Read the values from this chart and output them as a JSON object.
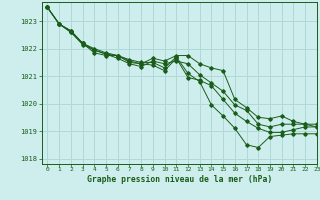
{
  "title": "Graphe pression niveau de la mer (hPa)",
  "background_color": "#ceeeed",
  "grid_color": "#b0d8d8",
  "line_color": "#1a5c1a",
  "xlim": [
    -0.5,
    23
  ],
  "ylim": [
    1017.8,
    1023.7
  ],
  "yticks": [
    1018,
    1019,
    1020,
    1021,
    1022,
    1023
  ],
  "xticks": [
    0,
    1,
    2,
    3,
    4,
    5,
    6,
    7,
    8,
    9,
    10,
    11,
    12,
    13,
    14,
    15,
    16,
    17,
    18,
    19,
    20,
    21,
    22,
    23
  ],
  "series": [
    [
      1023.5,
      1022.9,
      1022.65,
      1022.2,
      1021.85,
      1021.75,
      1021.75,
      1021.6,
      1021.5,
      1021.5,
      1021.3,
      1021.7,
      1021.1,
      1020.8,
      1019.95,
      1019.55,
      1019.1,
      1018.5,
      1018.4,
      1018.8,
      1018.85,
      1018.9,
      1018.9,
      1018.9
    ],
    [
      1023.5,
      1022.9,
      1022.65,
      1022.2,
      1022.0,
      1021.85,
      1021.75,
      1021.5,
      1021.45,
      1021.65,
      1021.55,
      1021.75,
      1021.75,
      1021.45,
      1021.3,
      1021.2,
      1020.15,
      1019.85,
      1019.5,
      1019.45,
      1019.55,
      1019.35,
      1019.25,
      1019.15
    ],
    [
      1023.5,
      1022.9,
      1022.6,
      1022.2,
      1021.95,
      1021.8,
      1021.75,
      1021.55,
      1021.45,
      1021.4,
      1021.2,
      1021.65,
      1020.95,
      1020.85,
      1020.65,
      1020.15,
      1019.65,
      1019.35,
      1019.1,
      1018.95,
      1018.95,
      1019.05,
      1019.15,
      1019.15
    ],
    [
      1023.5,
      1022.9,
      1022.6,
      1022.15,
      1021.95,
      1021.8,
      1021.65,
      1021.45,
      1021.35,
      1021.55,
      1021.45,
      1021.55,
      1021.45,
      1021.05,
      1020.75,
      1020.45,
      1019.95,
      1019.75,
      1019.25,
      1019.15,
      1019.25,
      1019.25,
      1019.25,
      1019.25
    ]
  ]
}
